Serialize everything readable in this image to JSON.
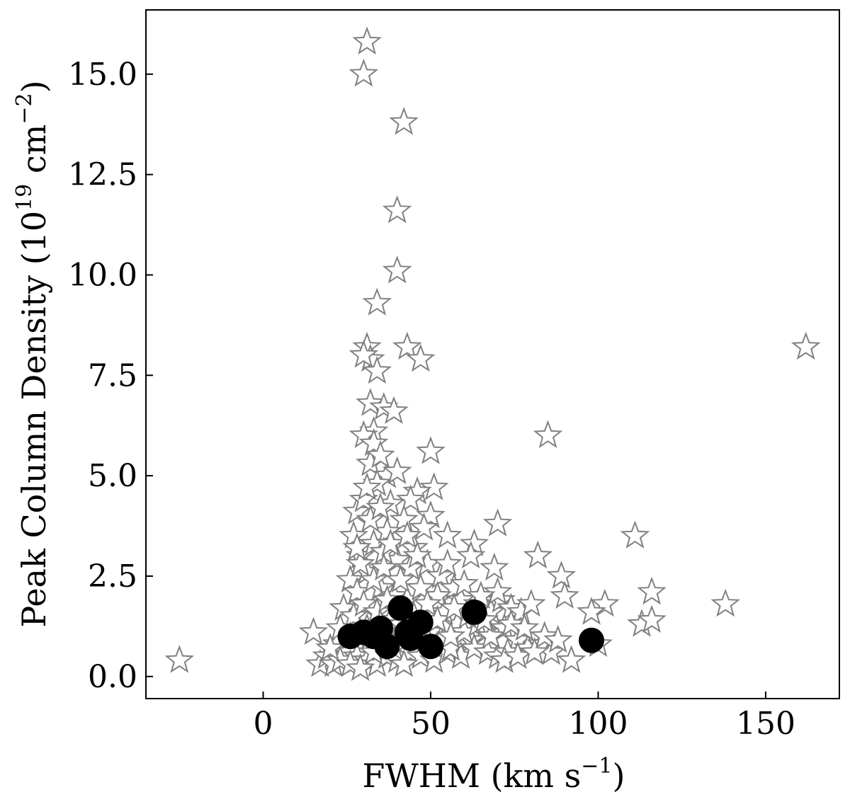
{
  "chart_data": {
    "type": "scatter",
    "xlabel": "FWHM (km s",
    "xlabel_sup": "−1",
    "xlabel_tail": ")",
    "ylabel_prefix": "Peak Column Density (10",
    "ylabel_sup1": "19",
    "ylabel_mid": " cm",
    "ylabel_sup2": "−2",
    "ylabel_tail": ")",
    "xlim": [
      -35,
      172
    ],
    "ylim": [
      -0.55,
      16.6
    ],
    "xticks": [
      0,
      50,
      100,
      150
    ],
    "xtick_labels": [
      "0",
      "50",
      "100",
      "150"
    ],
    "yticks": [
      0.0,
      2.5,
      5.0,
      7.5,
      10.0,
      12.5,
      15.0
    ],
    "ytick_labels": [
      "0.0",
      "2.5",
      "5.0",
      "7.5",
      "10.0",
      "12.5",
      "15.0"
    ],
    "grid": false,
    "colors": {
      "stars": "#808080",
      "circles": "#000000"
    },
    "series": [
      {
        "marker": "star",
        "points": [
          [
            -25,
            0.4
          ],
          [
            15,
            1.1
          ],
          [
            31,
            15.8
          ],
          [
            30,
            15.0
          ],
          [
            42,
            13.8
          ],
          [
            40,
            11.6
          ],
          [
            40,
            10.1
          ],
          [
            34,
            9.3
          ],
          [
            31,
            8.2
          ],
          [
            43,
            8.2
          ],
          [
            47,
            7.9
          ],
          [
            32,
            7.9
          ],
          [
            34,
            7.6
          ],
          [
            30,
            8.0
          ],
          [
            162,
            8.2
          ],
          [
            32,
            6.8
          ],
          [
            36,
            6.7
          ],
          [
            39,
            6.6
          ],
          [
            33,
            6.1
          ],
          [
            30,
            6.0
          ],
          [
            85,
            6.0
          ],
          [
            50,
            5.6
          ],
          [
            51,
            4.7
          ],
          [
            32,
            5.3
          ],
          [
            37,
            5.0
          ],
          [
            40,
            5.1
          ],
          [
            46,
            4.6
          ],
          [
            44,
            4.4
          ],
          [
            50,
            4.0
          ],
          [
            48,
            3.7
          ],
          [
            55,
            3.5
          ],
          [
            63,
            3.3
          ],
          [
            70,
            3.8
          ],
          [
            111,
            3.5
          ],
          [
            62,
            3.0
          ],
          [
            69,
            2.7
          ],
          [
            82,
            3.0
          ],
          [
            89,
            2.5
          ],
          [
            90,
            2.0
          ],
          [
            116,
            2.1
          ],
          [
            138,
            1.8
          ],
          [
            102,
            1.8
          ],
          [
            98,
            1.6
          ],
          [
            113,
            1.3
          ],
          [
            116,
            1.4
          ],
          [
            92,
            0.4
          ],
          [
            100,
            0.8
          ],
          [
            27,
            3.5
          ],
          [
            28,
            4.1
          ],
          [
            30,
            4.4
          ],
          [
            34,
            4.8
          ],
          [
            38,
            4.3
          ],
          [
            42,
            3.9
          ],
          [
            45,
            3.2
          ],
          [
            29,
            3.0
          ],
          [
            33,
            3.3
          ],
          [
            37,
            3.6
          ],
          [
            40,
            2.9
          ],
          [
            44,
            2.7
          ],
          [
            49,
            2.8
          ],
          [
            53,
            2.5
          ],
          [
            57,
            2.2
          ],
          [
            59,
            1.9
          ],
          [
            64,
            1.8
          ],
          [
            68,
            1.6
          ],
          [
            71,
            1.9
          ],
          [
            74,
            1.7
          ],
          [
            77,
            1.6
          ],
          [
            80,
            1.8
          ],
          [
            72,
            1.2
          ],
          [
            76,
            0.9
          ],
          [
            79,
            0.7
          ],
          [
            83,
            0.8
          ],
          [
            86,
            0.6
          ],
          [
            66,
            1.1
          ],
          [
            62,
            0.9
          ],
          [
            58,
            1.3
          ],
          [
            54,
            1.6
          ],
          [
            52,
            2.0
          ],
          [
            26,
            2.4
          ],
          [
            28,
            2.1
          ],
          [
            31,
            2.6
          ],
          [
            35,
            2.2
          ],
          [
            39,
            2.0
          ],
          [
            43,
            1.9
          ],
          [
            47,
            2.2
          ],
          [
            24,
            1.7
          ],
          [
            27,
            1.5
          ],
          [
            30,
            1.8
          ],
          [
            34,
            1.6
          ],
          [
            38,
            1.4
          ],
          [
            41,
            1.3
          ],
          [
            45,
            1.5
          ],
          [
            49,
            1.8
          ],
          [
            22,
            0.8
          ],
          [
            25,
            0.6
          ],
          [
            28,
            0.5
          ],
          [
            31,
            0.4
          ],
          [
            34,
            0.3
          ],
          [
            37,
            0.5
          ],
          [
            40,
            0.4
          ],
          [
            44,
            0.6
          ],
          [
            47,
            0.5
          ],
          [
            51,
            0.4
          ],
          [
            55,
            0.6
          ],
          [
            59,
            0.5
          ],
          [
            63,
            0.7
          ],
          [
            67,
            0.6
          ],
          [
            70,
            0.5
          ],
          [
            73,
            0.6
          ],
          [
            17,
            0.3
          ],
          [
            19,
            0.5
          ],
          [
            21,
            0.3
          ],
          [
            23,
            0.4
          ],
          [
            26,
            0.3
          ],
          [
            29,
            0.2
          ],
          [
            33,
            0.6
          ],
          [
            36,
            0.9
          ],
          [
            39,
            0.7
          ],
          [
            42,
            0.3
          ],
          [
            46,
            0.9
          ],
          [
            50,
            1.1
          ],
          [
            53,
            0.9
          ],
          [
            56,
            0.7
          ],
          [
            60,
            1.1
          ],
          [
            64,
            1.3
          ],
          [
            68,
            1.0
          ],
          [
            72,
            0.4
          ],
          [
            76,
            0.5
          ],
          [
            81,
            0.6
          ],
          [
            84,
            1.0
          ],
          [
            88,
            0.9
          ],
          [
            29,
            2.8
          ],
          [
            32,
            3.9
          ],
          [
            35,
            4.2
          ],
          [
            36,
            3.1
          ],
          [
            33,
            2.4
          ],
          [
            31,
            1.2
          ],
          [
            36,
            2.7
          ],
          [
            38,
            3.3
          ],
          [
            41,
            2.4
          ],
          [
            32,
            1.0
          ],
          [
            35,
            1.3
          ],
          [
            37,
            1.9
          ],
          [
            33,
            5.8
          ],
          [
            35,
            5.5
          ],
          [
            31,
            4.7
          ],
          [
            28,
            3.2
          ],
          [
            43,
            3.5
          ],
          [
            46,
            3.0
          ],
          [
            56,
            1.0
          ],
          [
            61,
            1.5
          ],
          [
            66,
            1.4
          ],
          [
            70,
            2.1
          ],
          [
            74,
            1.3
          ],
          [
            78,
            1.2
          ],
          [
            26,
            1.0
          ],
          [
            29,
            1.1
          ],
          [
            23,
            1.2
          ],
          [
            20,
            0.7
          ],
          [
            48,
            1.2
          ],
          [
            52,
            1.4
          ],
          [
            57,
            1.7
          ],
          [
            60,
            2.3
          ],
          [
            65,
            2.0
          ],
          [
            55,
            2.8
          ]
        ]
      },
      {
        "marker": "circle",
        "points": [
          [
            26,
            1.0
          ],
          [
            30,
            1.1
          ],
          [
            33,
            1.0
          ],
          [
            35,
            1.2
          ],
          [
            37,
            0.75
          ],
          [
            41,
            1.7
          ],
          [
            43,
            1.1
          ],
          [
            44,
            0.95
          ],
          [
            47,
            1.35
          ],
          [
            50,
            0.75
          ],
          [
            63,
            1.6
          ],
          [
            98,
            0.9
          ]
        ]
      }
    ]
  }
}
